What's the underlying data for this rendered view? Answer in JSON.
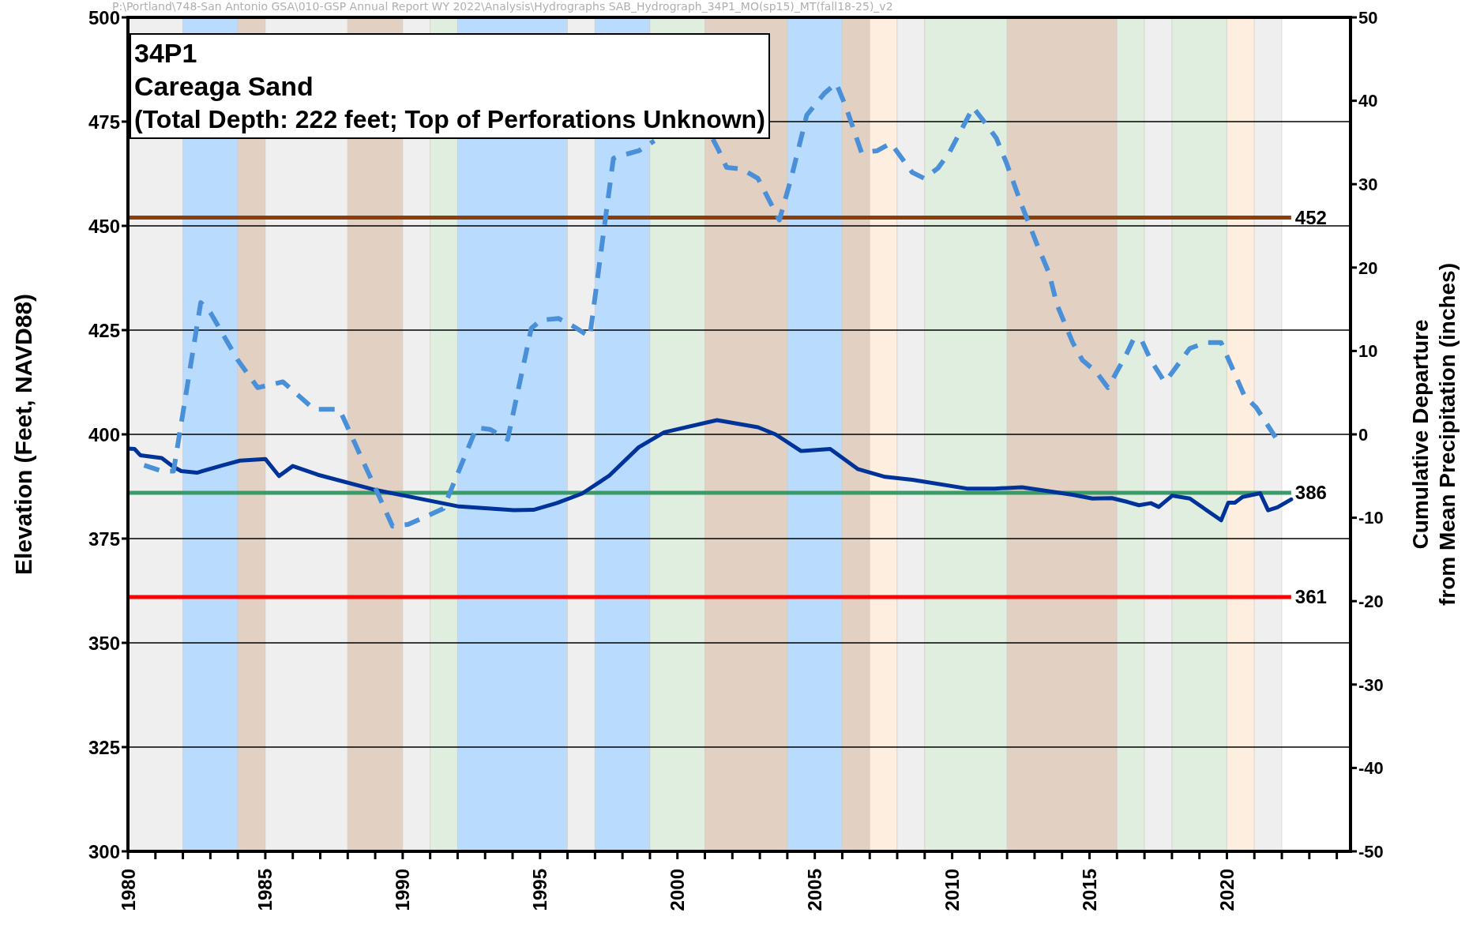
{
  "chart_data": {
    "type": "line",
    "title": "34P1",
    "subtitle": "Careaga Sand",
    "annotations": [
      "(Total Depth: 222 feet; Top of Perforations Unknown)",
      "P:\\Portland\\748-San Antonio GSA\\010-GSP Annual Report WY 2022\\Analysis\\Hydrographs SAB_Hydrograph_34P1_MO(sp15)_MT(fall18-25)_v2"
    ],
    "ylabel": "Elevation (Feet, NAVD88)",
    "y2label": "Cumulative Departure\nfrom Mean Precipitation (inches)",
    "xlim": [
      1980,
      2024.5
    ],
    "xticks": [
      1980,
      {
        "value": 1981,
        "label": null
      },
      {
        "value": 1982,
        "label": null
      },
      {
        "value": 1983,
        "label": null
      },
      {
        "value": 1984,
        "label": null
      },
      1985,
      {
        "value": 1986,
        "label": null
      },
      {
        "value": 1987,
        "label": null
      },
      {
        "value": 1988,
        "label": null
      },
      {
        "value": 1989,
        "label": null
      },
      1990,
      {
        "value": 1991,
        "label": null
      },
      {
        "value": 1992,
        "label": null
      },
      {
        "value": 1993,
        "label": null
      },
      {
        "value": 1994,
        "label": null
      },
      1995,
      {
        "value": 1996,
        "label": null
      },
      {
        "value": 1997,
        "label": null
      },
      {
        "value": 1998,
        "label": null
      },
      {
        "value": 1999,
        "label": null
      },
      2000,
      {
        "value": 2001,
        "label": null
      },
      {
        "value": 2002,
        "label": null
      },
      {
        "value": 2003,
        "label": null
      },
      {
        "value": 2004,
        "label": null
      },
      2005,
      {
        "value": 2006,
        "label": null
      },
      {
        "value": 2007,
        "label": null
      },
      {
        "value": 2008,
        "label": null
      },
      {
        "value": 2009,
        "label": null
      },
      2010,
      {
        "value": 2011,
        "label": null
      },
      {
        "value": 2012,
        "label": null
      },
      {
        "value": 2013,
        "label": null
      },
      {
        "value": 2014,
        "label": null
      },
      2015,
      {
        "value": 2016,
        "label": null
      },
      {
        "value": 2017,
        "label": null
      },
      {
        "value": 2018,
        "label": null
      },
      {
        "value": 2019,
        "label": null
      },
      2020,
      {
        "value": 2021,
        "label": null
      },
      {
        "value": 2022,
        "label": null
      },
      {
        "value": 2023,
        "label": null
      },
      {
        "value": 2024,
        "label": null
      }
    ],
    "ylim": [
      300,
      500
    ],
    "yticks": [
      300,
      325,
      350,
      375,
      400,
      425,
      450,
      475,
      500
    ],
    "y2lim": [
      -50,
      50
    ],
    "y2ticks": [
      -50,
      -40,
      -30,
      -20,
      -10,
      0,
      10,
      20,
      30,
      40,
      50
    ],
    "grid": "y",
    "series": [
      {
        "color": "#003399",
        "line_style": "solid",
        "x": [
          1980.0,
          1980.24,
          1980.45,
          1981.23,
          1981.66,
          1981.94,
          1982.51,
          1983.51,
          1984.08,
          1985.0,
          1985.5,
          1986.0,
          1986.92,
          1988.92,
          1992.05,
          1994.05,
          1994.76,
          1995.6,
          1996.53,
          1997.52,
          1998.59,
          1999.52,
          2001.44,
          2002.93,
          2003.57,
          2004.5,
          2005.56,
          2006.56,
          2007.56,
          2008.55,
          2010.54,
          2011.54,
          2012.54,
          2014.39,
          2015.1,
          2015.81,
          2016.38,
          2016.8,
          2017.23,
          2017.52,
          2018.01,
          2018.65,
          2019.79,
          2020.05,
          2020.29,
          2020.57,
          2021.21,
          2021.5,
          2021.84,
          2022.34
        ],
        "values": [
          396.6,
          396.5,
          395.0,
          394.3,
          392.2,
          391.2,
          390.8,
          392.7,
          393.7,
          394.1,
          390.0,
          392.4,
          390.3,
          386.8,
          382.7,
          381.8,
          381.9,
          383.5,
          385.8,
          390.1,
          396.9,
          400.5,
          403.4,
          401.7,
          400.0,
          396.0,
          396.5,
          391.7,
          389.8,
          389.1,
          387.0,
          387.0,
          387.3,
          385.5,
          384.6,
          384.7,
          383.8,
          383.0,
          383.5,
          382.6,
          385.3,
          384.6,
          379.4,
          383.6,
          383.6,
          385.0,
          385.9,
          381.8,
          382.5,
          384.4
        ]
      },
      {
        "color": "#4a90d9",
        "line_style": "dashed",
        "axis": "y2",
        "x": [
          1980.59,
          1981.23,
          1981.66,
          1982.65,
          1983.0,
          1984.0,
          1984.72,
          1985.64,
          1986.78,
          1987.7,
          1989.63,
          1990.2,
          1991.48,
          1992.69,
          1993.18,
          1993.82,
          1994.68,
          1995.03,
          1995.67,
          1996.24,
          1996.81,
          1997.67,
          1997.81,
          1998.59,
          1999.16,
          2000.2,
          2001.29,
          2001.51,
          2001.79,
          2002.36,
          2002.93,
          2003.71,
          2004.14,
          2004.71,
          2005.35,
          2005.78,
          2006.13,
          2006.7,
          2007.27,
          2007.77,
          2008.55,
          2008.98,
          2009.48,
          2009.9,
          2010.76,
          2011.26,
          2011.61,
          2011.97,
          2012.54,
          2013.1,
          2013.53,
          2013.82,
          2014.39,
          2014.74,
          2015.24,
          2015.67,
          2016.31,
          2016.6,
          2016.88,
          2017.23,
          2017.73,
          2017.87,
          2018.65,
          2019.22,
          2019.79,
          2020.07,
          2020.64,
          2021.07,
          2021.78
        ],
        "values": [
          -3.7,
          -4.4,
          -4.4,
          15.8,
          14.6,
          8.9,
          5.6,
          6.3,
          3.0,
          3.0,
          -11.0,
          -10.8,
          -8.9,
          0.8,
          0.6,
          -0.6,
          12.7,
          13.7,
          13.9,
          12.9,
          11.7,
          33.1,
          33.3,
          34.0,
          35.2,
          null,
          35.4,
          34.0,
          32.0,
          31.8,
          30.7,
          25.7,
          30.7,
          38.3,
          40.9,
          42.1,
          39.3,
          33.8,
          34.0,
          34.9,
          31.4,
          30.7,
          31.9,
          33.8,
          39.2,
          37.1,
          35.5,
          32.6,
          27.4,
          22.7,
          19.3,
          15.5,
          11.0,
          8.9,
          7.5,
          5.6,
          9.4,
          11.4,
          11.4,
          8.9,
          6.3,
          6.8,
          10.3,
          11.0,
          11.0,
          8.9,
          4.6,
          3.2,
          -0.4
        ]
      }
    ],
    "ref_lines": [
      {
        "axis": "y",
        "value": 452,
        "label": "452",
        "color": "#8b3d0a"
      },
      {
        "axis": "y",
        "value": 386,
        "label": "386",
        "color": "#3a9a68"
      },
      {
        "axis": "y",
        "value": 361,
        "label": "361",
        "color": "#ff0000"
      }
    ],
    "bands": [
      {
        "axis": "x",
        "from": 1980,
        "to": 1982,
        "color": "#efefef"
      },
      {
        "axis": "x",
        "from": 1982,
        "to": 1984,
        "color": "#b9dbfd"
      },
      {
        "axis": "x",
        "from": 1984,
        "to": 1985,
        "color": "#e2d1c2"
      },
      {
        "axis": "x",
        "from": 1985,
        "to": 1988,
        "color": "#efefef"
      },
      {
        "axis": "x",
        "from": 1988,
        "to": 1990,
        "color": "#e2d1c2"
      },
      {
        "axis": "x",
        "from": 1990,
        "to": 1991,
        "color": "#efefef"
      },
      {
        "axis": "x",
        "from": 1991,
        "to": 1992,
        "color": "#e0eee0"
      },
      {
        "axis": "x",
        "from": 1992,
        "to": 1996,
        "color": "#b9dbfd"
      },
      {
        "axis": "x",
        "from": 1996,
        "to": 1997,
        "color": "#efefef"
      },
      {
        "axis": "x",
        "from": 1997,
        "to": 1999,
        "color": "#b9dbfd"
      },
      {
        "axis": "x",
        "from": 1999,
        "to": 2001,
        "color": "#e0eee0"
      },
      {
        "axis": "x",
        "from": 2001,
        "to": 2004,
        "color": "#e2d1c2"
      },
      {
        "axis": "x",
        "from": 2004,
        "to": 2006,
        "color": "#b9dbfd"
      },
      {
        "axis": "x",
        "from": 2006,
        "to": 2007,
        "color": "#e2d1c2"
      },
      {
        "axis": "x",
        "from": 2007,
        "to": 2008,
        "color": "#fdeedf"
      },
      {
        "axis": "x",
        "from": 2008,
        "to": 2009,
        "color": "#efefef"
      },
      {
        "axis": "x",
        "from": 2009,
        "to": 2012,
        "color": "#e0eee0"
      },
      {
        "axis": "x",
        "from": 2012,
        "to": 2016,
        "color": "#e2d1c2"
      },
      {
        "axis": "x",
        "from": 2016,
        "to": 2017,
        "color": "#e0eee0"
      },
      {
        "axis": "x",
        "from": 2017,
        "to": 2018,
        "color": "#efefef"
      },
      {
        "axis": "x",
        "from": 2018,
        "to": 2020,
        "color": "#e0eee0"
      },
      {
        "axis": "x",
        "from": 2020,
        "to": 2021,
        "color": "#fdeedf"
      },
      {
        "axis": "x",
        "from": 2021,
        "to": 2022,
        "color": "#efefef"
      }
    ]
  }
}
